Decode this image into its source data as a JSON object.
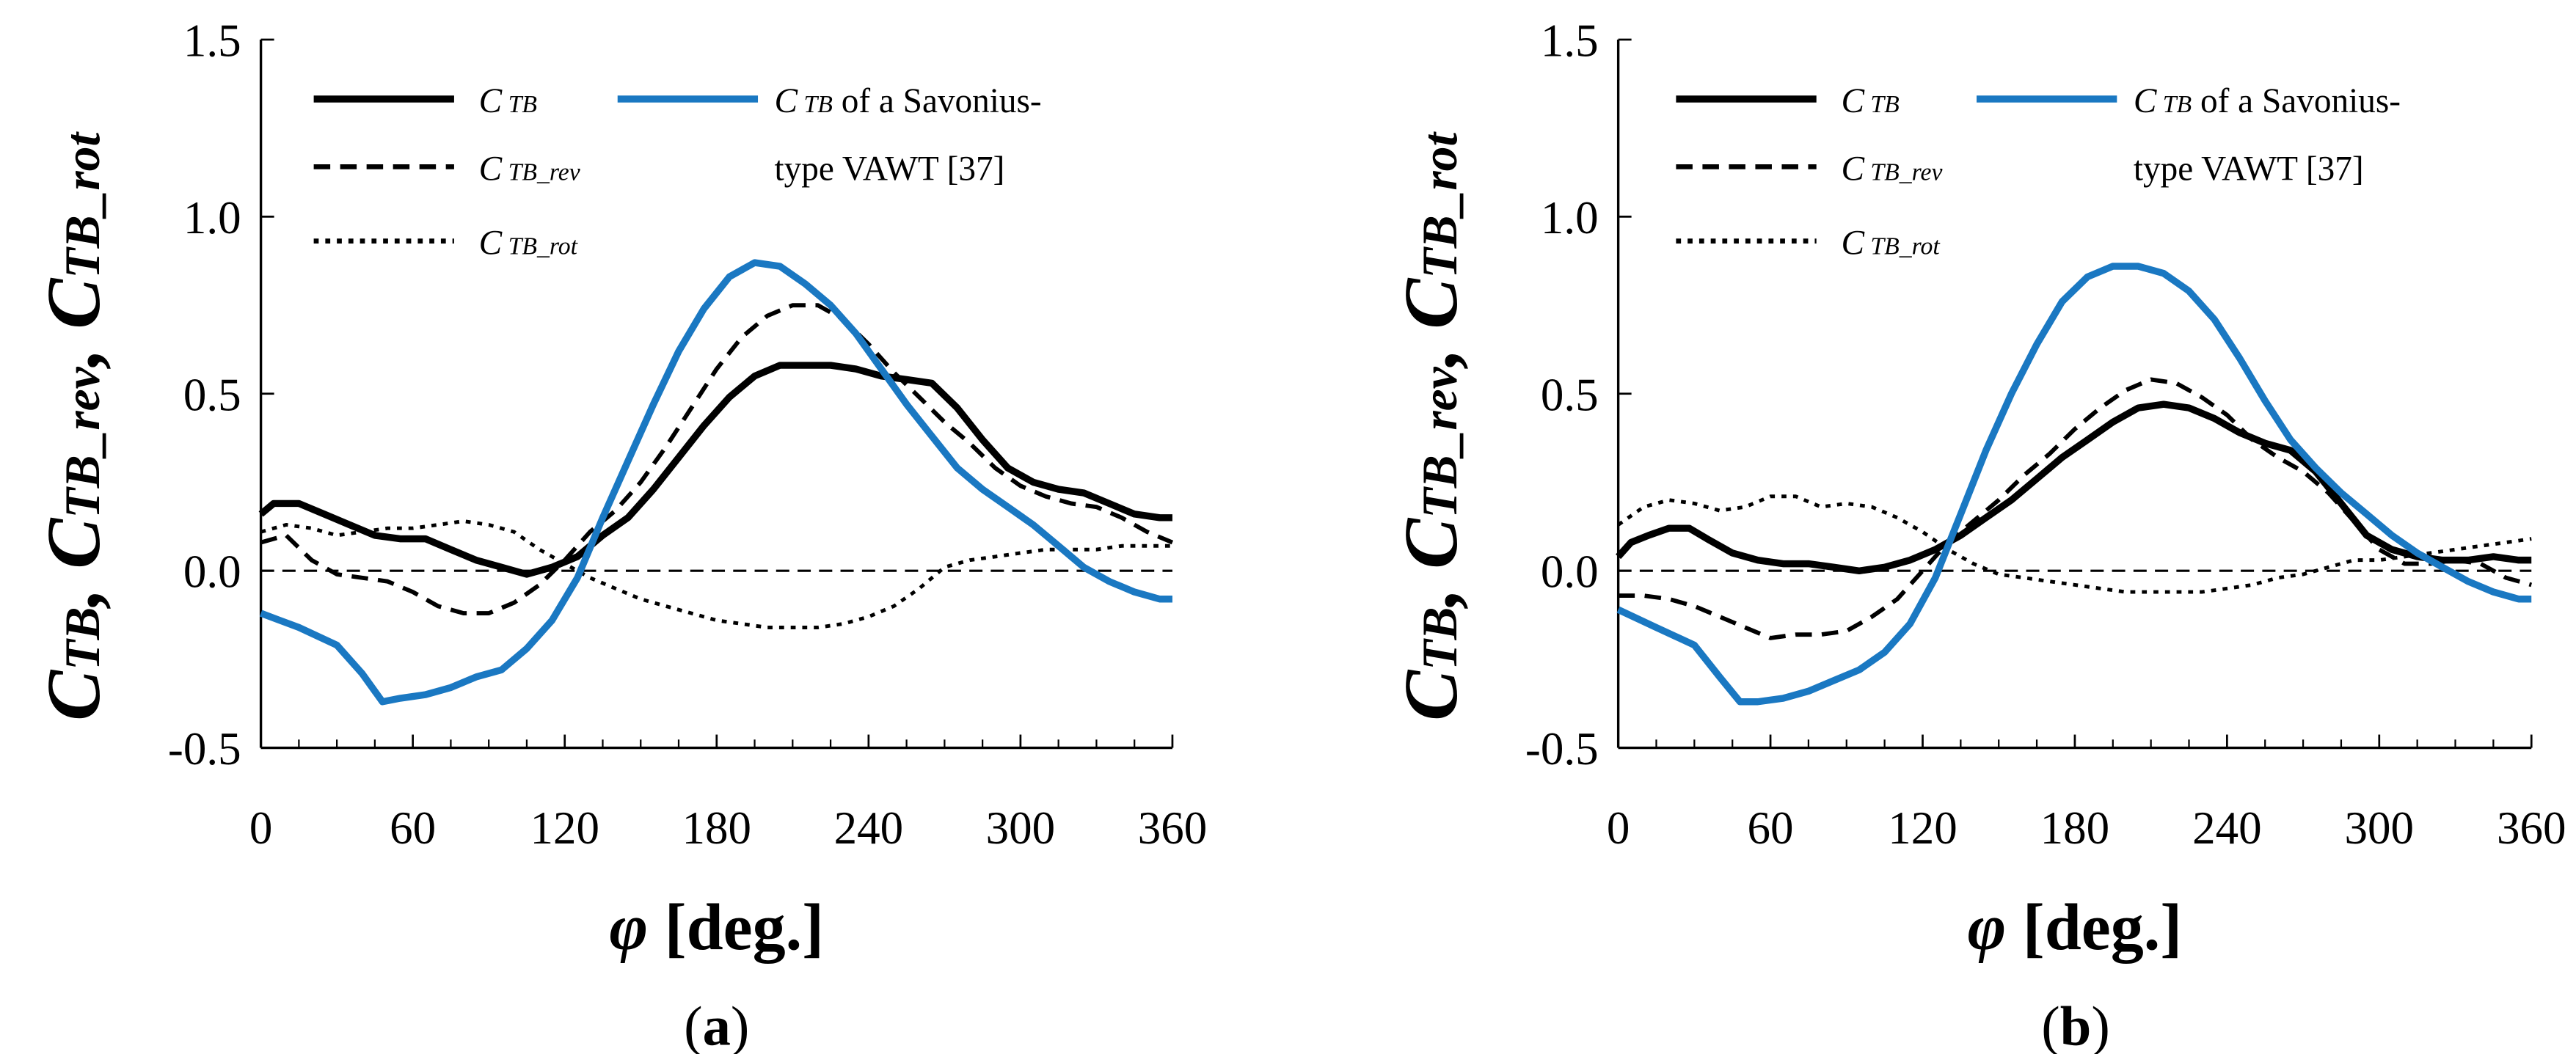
{
  "colors": {
    "black": "#000000",
    "blue": "#1a78c2"
  },
  "chart_data": [
    {
      "type": "line",
      "panel_label": "(a)",
      "xlabel": "φ [deg.]",
      "ylabel": "C_TB, C_TB_rev, C_TB_rot",
      "ylabel_parts": [
        "C",
        "TB",
        ", C",
        "TB_rev",
        ", C",
        "TB_rot"
      ],
      "xlim": [
        0,
        360
      ],
      "ylim": [
        -0.5,
        1.5
      ],
      "xticks": [
        0,
        60,
        120,
        180,
        240,
        300,
        360
      ],
      "yticks": [
        -0.5,
        0.0,
        0.5,
        1.0,
        1.5
      ],
      "ytick_labels": [
        "-0.5",
        "0.0",
        "0.5",
        "1.0",
        "1.5"
      ],
      "legend": [
        {
          "name": "C TB",
          "sym": "C",
          "sub": " TB"
        },
        {
          "name": "C TB_rev",
          "sym": "C",
          "sub": " TB_rev"
        },
        {
          "name": "C TB_rot",
          "sym": "C",
          "sub": " TB_rot"
        },
        {
          "name": "C TB of a Savonius-type VAWT [37]",
          "sym": "C",
          "sub": " TB",
          "rest": " of a Savonius-",
          "line2": "type VAWT [37]"
        }
      ],
      "series": [
        {
          "name": "C TB",
          "style": "solid",
          "color": "#000000",
          "x": [
            0,
            5,
            15,
            25,
            35,
            45,
            55,
            65,
            75,
            85,
            95,
            105,
            115,
            125,
            135,
            145,
            155,
            165,
            175,
            185,
            195,
            205,
            215,
            225,
            235,
            245,
            255,
            265,
            275,
            285,
            295,
            305,
            315,
            325,
            335,
            345,
            355,
            360
          ],
          "y": [
            0.16,
            0.19,
            0.19,
            0.16,
            0.13,
            0.1,
            0.09,
            0.09,
            0.06,
            0.03,
            0.01,
            -0.01,
            0.01,
            0.04,
            0.1,
            0.15,
            0.23,
            0.32,
            0.41,
            0.49,
            0.55,
            0.58,
            0.58,
            0.58,
            0.57,
            0.55,
            0.54,
            0.53,
            0.46,
            0.37,
            0.29,
            0.25,
            0.23,
            0.22,
            0.19,
            0.16,
            0.15,
            0.15
          ]
        },
        {
          "name": "C TB_rev",
          "style": "dash",
          "color": "#000000",
          "x": [
            0,
            10,
            20,
            30,
            40,
            50,
            60,
            70,
            80,
            90,
            100,
            110,
            120,
            130,
            140,
            150,
            160,
            170,
            180,
            190,
            200,
            210,
            220,
            230,
            240,
            250,
            260,
            270,
            280,
            290,
            300,
            310,
            320,
            330,
            340,
            350,
            360
          ],
          "y": [
            0.08,
            0.1,
            0.03,
            -0.01,
            -0.02,
            -0.03,
            -0.06,
            -0.1,
            -0.12,
            -0.12,
            -0.09,
            -0.04,
            0.03,
            0.11,
            0.17,
            0.25,
            0.35,
            0.46,
            0.57,
            0.66,
            0.72,
            0.75,
            0.75,
            0.71,
            0.64,
            0.56,
            0.49,
            0.42,
            0.36,
            0.29,
            0.24,
            0.21,
            0.19,
            0.18,
            0.15,
            0.11,
            0.08
          ]
        },
        {
          "name": "C TB_rot",
          "style": "dot",
          "color": "#000000",
          "x": [
            0,
            10,
            20,
            30,
            40,
            50,
            60,
            70,
            80,
            90,
            100,
            110,
            120,
            130,
            140,
            150,
            160,
            170,
            180,
            190,
            200,
            210,
            220,
            230,
            240,
            250,
            260,
            270,
            280,
            290,
            300,
            310,
            320,
            330,
            340,
            350,
            360
          ],
          "y": [
            0.11,
            0.13,
            0.12,
            0.1,
            0.11,
            0.12,
            0.12,
            0.13,
            0.14,
            0.13,
            0.11,
            0.06,
            0.02,
            -0.02,
            -0.05,
            -0.08,
            -0.1,
            -0.12,
            -0.14,
            -0.15,
            -0.16,
            -0.16,
            -0.16,
            -0.15,
            -0.13,
            -0.1,
            -0.05,
            0.01,
            0.03,
            0.04,
            0.05,
            0.06,
            0.06,
            0.06,
            0.07,
            0.07,
            0.07
          ]
        },
        {
          "name": "C TB of a Savonius-type VAWT [37]",
          "style": "solid",
          "color": "#1a78c2",
          "x": [
            0,
            15,
            30,
            40,
            48,
            55,
            65,
            75,
            85,
            95,
            105,
            115,
            125,
            135,
            145,
            155,
            165,
            175,
            185,
            195,
            205,
            215,
            225,
            235,
            245,
            255,
            265,
            275,
            285,
            295,
            305,
            315,
            325,
            335,
            345,
            355,
            360
          ],
          "y": [
            -0.12,
            -0.16,
            -0.21,
            -0.29,
            -0.37,
            -0.36,
            -0.35,
            -0.33,
            -0.3,
            -0.28,
            -0.22,
            -0.14,
            -0.02,
            0.15,
            0.31,
            0.47,
            0.62,
            0.74,
            0.83,
            0.87,
            0.86,
            0.81,
            0.75,
            0.67,
            0.57,
            0.47,
            0.38,
            0.29,
            0.23,
            0.18,
            0.13,
            0.07,
            0.01,
            -0.03,
            -0.06,
            -0.08,
            -0.08
          ]
        }
      ]
    },
    {
      "type": "line",
      "panel_label": "(b)",
      "xlabel": "φ [deg.]",
      "ylabel": "C_TB, C_TB_rev, C_TB_rot",
      "ylabel_parts": [
        "C",
        "TB",
        ", C",
        "TB_rev",
        ", C",
        "TB_rot"
      ],
      "xlim": [
        0,
        360
      ],
      "ylim": [
        -0.5,
        1.5
      ],
      "xticks": [
        0,
        60,
        120,
        180,
        240,
        300,
        360
      ],
      "yticks": [
        -0.5,
        0.0,
        0.5,
        1.0,
        1.5
      ],
      "ytick_labels": [
        "-0.5",
        "0.0",
        "0.5",
        "1.0",
        "1.5"
      ],
      "legend": [
        {
          "name": "C TB",
          "sym": "C",
          "sub": " TB"
        },
        {
          "name": "C TB_rev",
          "sym": "C",
          "sub": " TB_rev"
        },
        {
          "name": "C TB_rot",
          "sym": "C",
          "sub": " TB_rot"
        },
        {
          "name": "C TB of a Savonius-type VAWT [37]",
          "sym": "C",
          "sub": " TB",
          "rest": " of a Savonius-",
          "line2": "type VAWT [37]"
        }
      ],
      "series": [
        {
          "name": "C TB",
          "style": "solid",
          "color": "#000000",
          "x": [
            0,
            5,
            12,
            20,
            28,
            35,
            45,
            55,
            65,
            75,
            85,
            95,
            105,
            115,
            125,
            135,
            145,
            155,
            165,
            175,
            185,
            195,
            205,
            215,
            225,
            235,
            245,
            255,
            265,
            275,
            285,
            295,
            305,
            315,
            325,
            335,
            345,
            355,
            360
          ],
          "y": [
            0.04,
            0.08,
            0.1,
            0.12,
            0.12,
            0.09,
            0.05,
            0.03,
            0.02,
            0.02,
            0.01,
            0.0,
            0.01,
            0.03,
            0.06,
            0.1,
            0.15,
            0.2,
            0.26,
            0.32,
            0.37,
            0.42,
            0.46,
            0.47,
            0.46,
            0.43,
            0.39,
            0.36,
            0.34,
            0.28,
            0.19,
            0.1,
            0.06,
            0.04,
            0.03,
            0.03,
            0.04,
            0.03,
            0.03
          ]
        },
        {
          "name": "C TB_rev",
          "style": "dash",
          "color": "#000000",
          "x": [
            0,
            10,
            20,
            30,
            40,
            50,
            60,
            70,
            80,
            90,
            100,
            110,
            120,
            130,
            140,
            150,
            160,
            170,
            180,
            190,
            200,
            210,
            220,
            230,
            240,
            250,
            260,
            270,
            280,
            290,
            300,
            310,
            320,
            330,
            340,
            350,
            360
          ],
          "y": [
            -0.07,
            -0.07,
            -0.08,
            -0.1,
            -0.13,
            -0.16,
            -0.19,
            -0.18,
            -0.18,
            -0.17,
            -0.13,
            -0.08,
            0.0,
            0.08,
            0.14,
            0.2,
            0.27,
            0.33,
            0.4,
            0.46,
            0.51,
            0.54,
            0.53,
            0.49,
            0.44,
            0.37,
            0.32,
            0.28,
            0.22,
            0.14,
            0.06,
            0.02,
            0.02,
            0.03,
            0.02,
            -0.02,
            -0.04
          ]
        },
        {
          "name": "C TB_rot",
          "style": "dot",
          "color": "#000000",
          "x": [
            0,
            10,
            20,
            30,
            40,
            50,
            60,
            70,
            80,
            90,
            100,
            110,
            120,
            130,
            140,
            150,
            160,
            170,
            180,
            190,
            200,
            210,
            220,
            230,
            240,
            250,
            260,
            270,
            280,
            290,
            300,
            310,
            320,
            330,
            340,
            350,
            360
          ],
          "y": [
            0.13,
            0.18,
            0.2,
            0.19,
            0.17,
            0.18,
            0.21,
            0.21,
            0.18,
            0.19,
            0.18,
            0.15,
            0.11,
            0.06,
            0.02,
            -0.01,
            -0.02,
            -0.03,
            -0.04,
            -0.05,
            -0.06,
            -0.06,
            -0.06,
            -0.06,
            -0.05,
            -0.04,
            -0.02,
            -0.01,
            0.01,
            0.03,
            0.03,
            0.04,
            0.05,
            0.06,
            0.07,
            0.08,
            0.09
          ]
        },
        {
          "name": "C TB of a Savonius-type VAWT [37]",
          "style": "solid",
          "color": "#1a78c2",
          "x": [
            0,
            15,
            30,
            40,
            48,
            55,
            65,
            75,
            85,
            95,
            105,
            115,
            125,
            135,
            145,
            155,
            165,
            175,
            185,
            195,
            205,
            215,
            225,
            235,
            245,
            255,
            265,
            275,
            285,
            295,
            305,
            315,
            325,
            335,
            345,
            355,
            360
          ],
          "y": [
            -0.11,
            -0.16,
            -0.21,
            -0.3,
            -0.37,
            -0.37,
            -0.36,
            -0.34,
            -0.31,
            -0.28,
            -0.23,
            -0.15,
            -0.02,
            0.16,
            0.34,
            0.5,
            0.64,
            0.76,
            0.83,
            0.86,
            0.86,
            0.84,
            0.79,
            0.71,
            0.6,
            0.48,
            0.37,
            0.29,
            0.22,
            0.16,
            0.1,
            0.05,
            0.01,
            -0.03,
            -0.06,
            -0.08,
            -0.08
          ]
        }
      ]
    }
  ]
}
